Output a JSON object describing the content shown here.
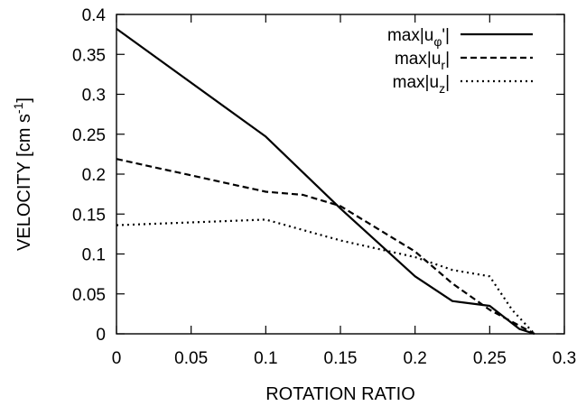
{
  "chart_data": {
    "type": "line",
    "title": "",
    "xlabel": "ROTATION RATIO",
    "ylabel": "VELOCITY [cm s-1]",
    "ylabel_parts": {
      "main": "VELOCITY [cm s",
      "sup": "-1",
      "end": "]"
    },
    "xlim": [
      0,
      0.3
    ],
    "ylim": [
      0,
      0.4
    ],
    "xticks": [
      0,
      0.05,
      0.1,
      0.15,
      0.2,
      0.25,
      0.3
    ],
    "xtick_labels": [
      "0",
      "0.05",
      "0.1",
      "0.15",
      "0.2",
      "0.25",
      "0.3"
    ],
    "yticks": [
      0,
      0.05,
      0.1,
      0.15,
      0.2,
      0.25,
      0.3,
      0.35,
      0.4
    ],
    "ytick_labels": [
      "0",
      "0.05",
      "0.1",
      "0.15",
      "0.2",
      "0.25",
      "0.3",
      "0.35",
      "0.4"
    ],
    "grid": false,
    "legend_position": "top-right",
    "series": [
      {
        "name": "max|uφ'|",
        "label_parts": {
          "base": "max|u",
          "sub": "φ",
          "end": "'|"
        },
        "style": "solid",
        "x": [
          0,
          0.1,
          0.15,
          0.2,
          0.225,
          0.25,
          0.27,
          0.28
        ],
        "y": [
          0.382,
          0.247,
          0.157,
          0.072,
          0.041,
          0.035,
          0.006,
          0.0
        ]
      },
      {
        "name": "max|ur|",
        "label_parts": {
          "base": "max|u",
          "sub": "r",
          "end": "|"
        },
        "style": "dashed",
        "x": [
          0,
          0.1,
          0.125,
          0.15,
          0.2,
          0.225,
          0.25,
          0.27,
          0.28
        ],
        "y": [
          0.219,
          0.178,
          0.174,
          0.16,
          0.103,
          0.063,
          0.03,
          0.01,
          0.0
        ]
      },
      {
        "name": "max|uz|",
        "label_parts": {
          "base": "max|u",
          "sub": "z",
          "end": "|"
        },
        "style": "dotted",
        "x": [
          0,
          0.1,
          0.15,
          0.2,
          0.225,
          0.25,
          0.265,
          0.28
        ],
        "y": [
          0.136,
          0.143,
          0.117,
          0.096,
          0.08,
          0.072,
          0.03,
          0.0
        ]
      }
    ]
  }
}
